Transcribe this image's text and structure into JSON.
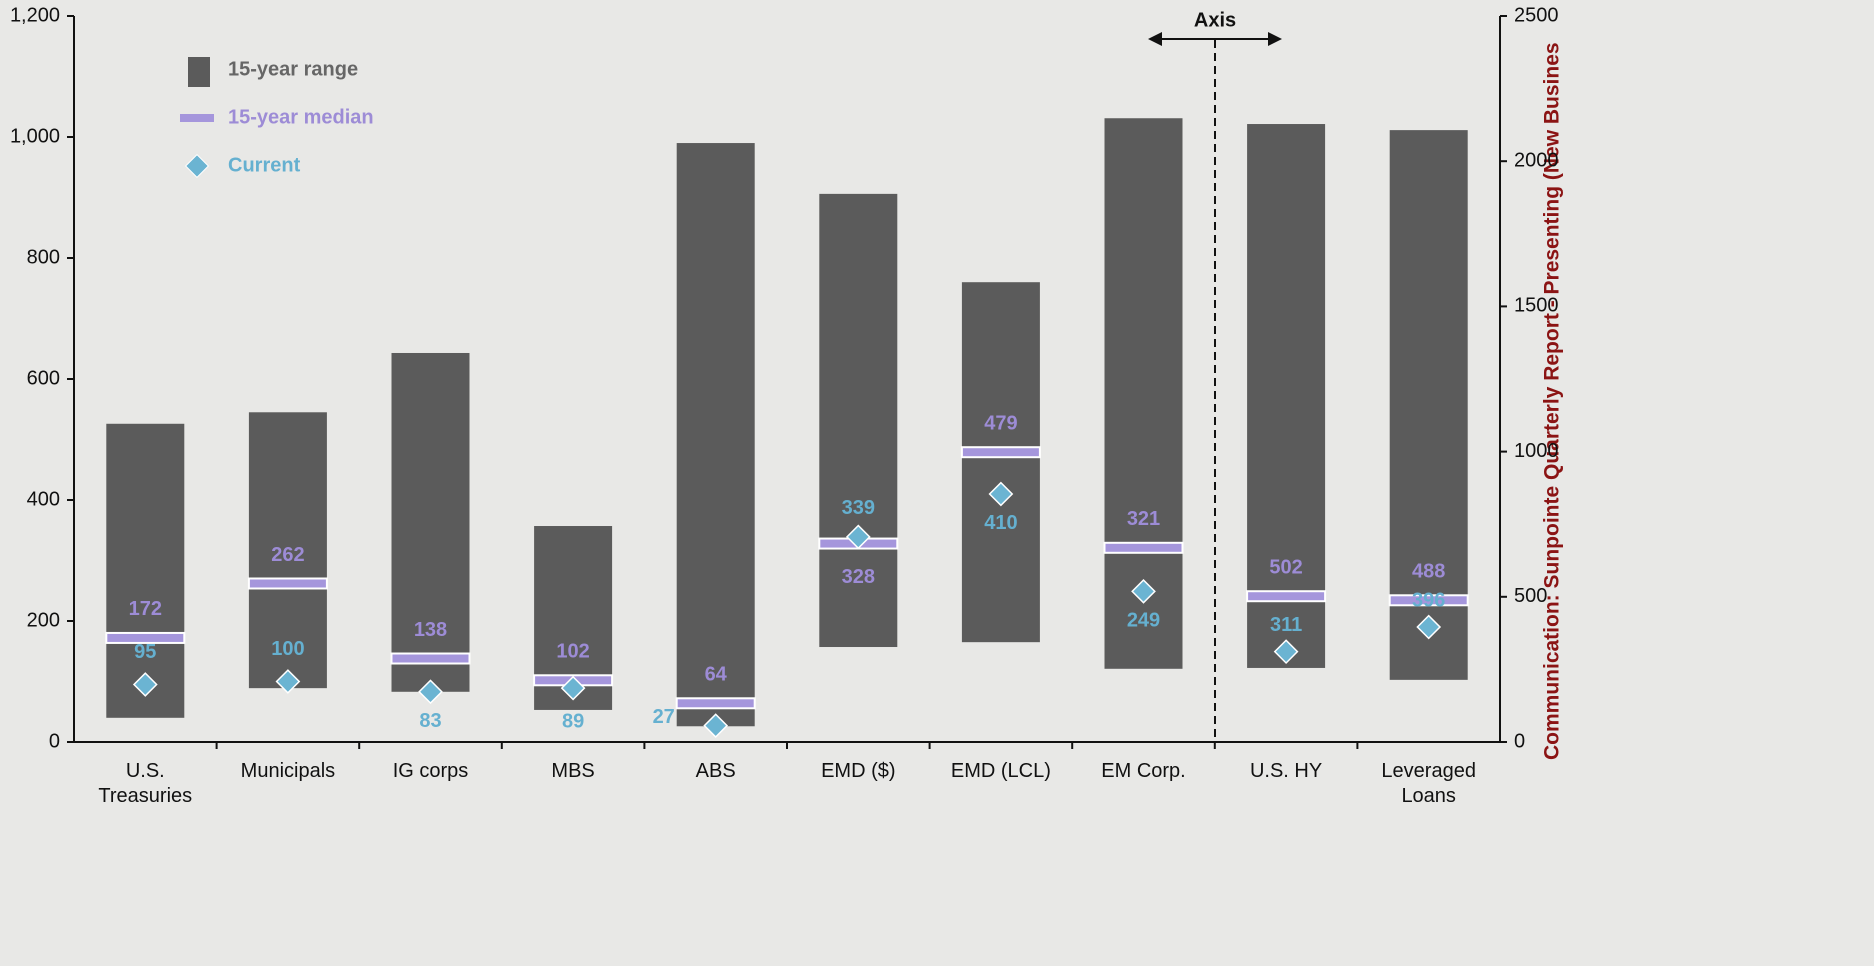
{
  "chart_data": {
    "type": "range",
    "annotation": "Axis",
    "y2_label": "Communication: Sunpointe Quarterly Report - Presenting  (New Busines",
    "categories": [
      "U.S.\nTreasuries",
      "Municipals",
      "IG corps",
      "MBS",
      "ABS",
      "EMD ($)",
      "EMD (LCL)",
      "EM Corp.",
      "U.S. HY",
      "Leveraged\nLoans"
    ],
    "category_axis": [
      "y",
      "y",
      "y",
      "y",
      "y",
      "y",
      "y",
      "y",
      "y2",
      "y2"
    ],
    "ylim": [
      0,
      1200
    ],
    "yticks": [
      0,
      200,
      400,
      600,
      800,
      {
        "value": 1000,
        "label": "1,000"
      },
      {
        "value": 1200,
        "label": "1,200"
      }
    ],
    "y2lim": [
      0,
      2500
    ],
    "y2ticks": [
      0,
      500,
      1000,
      1500,
      2000,
      2500
    ],
    "series": [
      {
        "name": "15-year range",
        "color": "#5b5b5b",
        "low": [
          40,
          89,
          83,
          53,
          26,
          157,
          165,
          121,
          255,
          214
        ],
        "high": [
          526,
          545,
          643,
          357,
          990,
          906,
          760,
          1031,
          2128,
          2107
        ]
      },
      {
        "name": "15-year median",
        "color": "#a596dc",
        "values": [
          172,
          262,
          138,
          102,
          64,
          328,
          479,
          321,
          502,
          488
        ]
      },
      {
        "name": "Current",
        "color": "#6bb4d2",
        "values": [
          95,
          100,
          83,
          89,
          27,
          339,
          410,
          249,
          311,
          396
        ]
      }
    ]
  }
}
